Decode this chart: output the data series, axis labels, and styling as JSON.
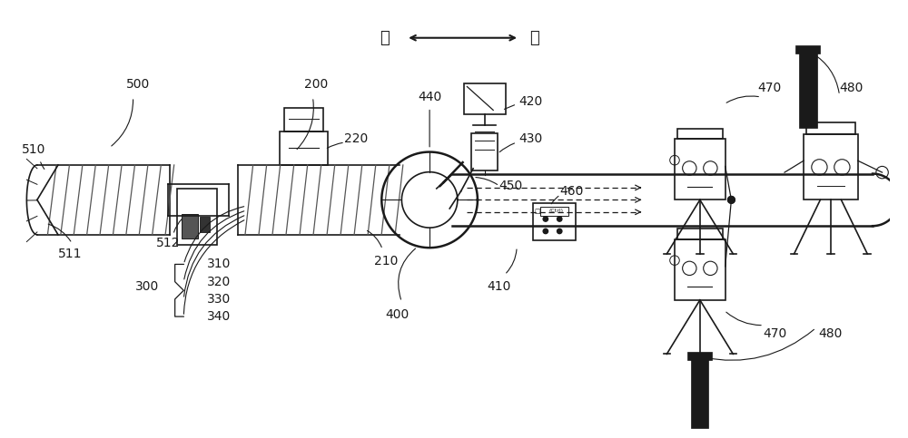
{
  "title": "",
  "bg_color": "#ffffff",
  "label_far": "远",
  "label_near": "近",
  "figsize": [
    10.0,
    4.83
  ],
  "dpi": 100
}
